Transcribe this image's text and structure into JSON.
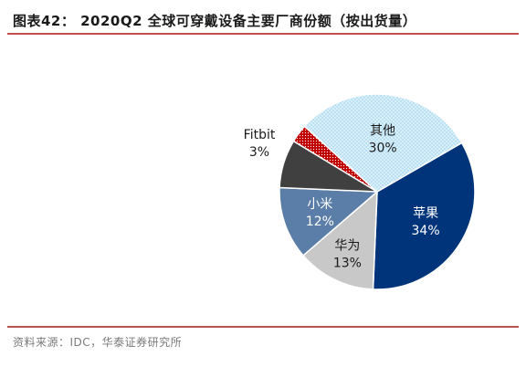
{
  "title": "图表42：   2020Q2 全球可穿戴设备主要厂商份额（按出货量）",
  "source": "资料来源：IDC，华泰证券研究所",
  "chart_data": {
    "type": "pie",
    "slices": [
      {
        "name": "苹果",
        "value": 34,
        "label": "34%",
        "color": "#00347a",
        "pattern": "none",
        "text_color": "#ffffff"
      },
      {
        "name": "华为",
        "value": 13,
        "label": "13%",
        "color": "#c8c8c8",
        "pattern": "none",
        "text_color": "#1a1a1a"
      },
      {
        "name": "小米",
        "value": 12,
        "label": "12%",
        "color": "#5b7ea9",
        "pattern": "none",
        "text_color": "#ffffff"
      },
      {
        "name": "",
        "value": 8,
        "label": "",
        "color": "#404040",
        "pattern": "none",
        "text_color": "#ffffff"
      },
      {
        "name": "Fitbit",
        "value": 3,
        "label": "3%",
        "color": "#c00000",
        "pattern": "dots",
        "text_color": "#1a1a1a"
      },
      {
        "name": "其他",
        "value": 30,
        "label": "30%",
        "color": "#d9f0fb",
        "pattern": "dots",
        "text_color": "#1a1a1a"
      }
    ]
  }
}
